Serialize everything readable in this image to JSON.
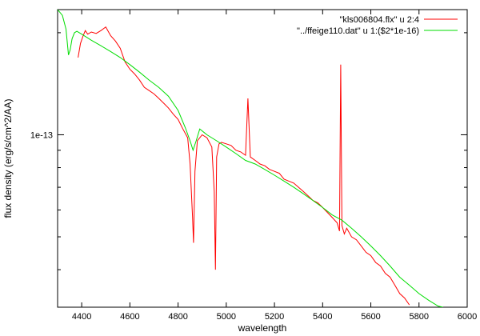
{
  "chart_data": {
    "type": "line",
    "xlabel": "wavelength",
    "ylabel": "flux density (erg/s/cm^2/AA)",
    "xlim": [
      4300,
      6000
    ],
    "x_ticks": [
      4400,
      4600,
      4800,
      5000,
      5200,
      5400,
      5600,
      5800,
      6000
    ],
    "y_scale": "log",
    "ylim": [
      3.1e-14,
      2.34e-13
    ],
    "y_ticks": [
      {
        "value": 1e-13,
        "label": "1e-13"
      }
    ],
    "grid": false,
    "legend_position": "top-right",
    "series": [
      {
        "name": "\"kls006804.flx\" u 2:4",
        "color": "#ff0000",
        "x": [
          4385,
          4395,
          4405,
          4415,
          4425,
          4440,
          4460,
          4480,
          4500,
          4520,
          4540,
          4560,
          4580,
          4600,
          4620,
          4640,
          4660,
          4680,
          4700,
          4720,
          4740,
          4760,
          4780,
          4800,
          4820,
          4840,
          4850,
          4860,
          4864,
          4870,
          4880,
          4900,
          4920,
          4940,
          4950,
          4955,
          4960,
          4970,
          4980,
          5000,
          5020,
          5040,
          5060,
          5080,
          5090,
          5100,
          5120,
          5140,
          5160,
          5180,
          5200,
          5220,
          5240,
          5260,
          5280,
          5300,
          5320,
          5340,
          5360,
          5380,
          5400,
          5420,
          5440,
          5460,
          5470,
          5475,
          5480,
          5490,
          5500,
          5520,
          5540,
          5560,
          5580,
          5600,
          5620,
          5640,
          5660,
          5680,
          5700,
          5720,
          5740,
          5760
        ],
        "y": [
          1.69e-13,
          1.86e-13,
          1.95e-13,
          2.03e-13,
          1.98e-13,
          2.01e-13,
          1.99e-13,
          2.03e-13,
          2.08e-13,
          1.96e-13,
          1.89e-13,
          1.8e-13,
          1.64e-13,
          1.56e-13,
          1.51e-13,
          1.45e-13,
          1.38e-13,
          1.35e-13,
          1.32e-13,
          1.28e-13,
          1.24e-13,
          1.2e-13,
          1.15e-13,
          1.11e-13,
          1.04e-13,
          9.8e-14,
          8.2e-14,
          5.7e-14,
          4.8e-14,
          7.8e-14,
          9.6e-14,
          1e-13,
          9.8e-14,
          9.2e-14,
          6.8e-14,
          4e-14,
          8.6e-14,
          9.4e-14,
          9.5e-14,
          9.4e-14,
          9.3e-14,
          9e-14,
          8.9e-14,
          8.7e-14,
          1.28e-13,
          8.6e-14,
          8.4e-14,
          8.2e-14,
          8.1e-14,
          7.9e-14,
          7.8e-14,
          7.7e-14,
          7.4e-14,
          7.3e-14,
          7.2e-14,
          7e-14,
          6.8e-14,
          6.6e-14,
          6.4e-14,
          6.3e-14,
          6.1e-14,
          5.9e-14,
          5.7e-14,
          5.5e-14,
          5.2e-14,
          1.61e-13,
          5.4e-14,
          5.1e-14,
          5.3e-14,
          5e-14,
          4.9e-14,
          4.7e-14,
          4.5e-14,
          4.4e-14,
          4.2e-14,
          4.1e-14,
          3.9e-14,
          3.8e-14,
          3.6e-14,
          3.4e-14,
          3.3e-14,
          3.15e-14
        ]
      },
      {
        "name": "\"../ffeige110.dat\" u 1:($2*1e-16)",
        "color": "#00dd00",
        "x": [
          4300,
          4320,
          4335,
          4345,
          4352,
          4360,
          4370,
          4380,
          4400,
          4440,
          4480,
          4520,
          4560,
          4600,
          4640,
          4680,
          4720,
          4760,
          4800,
          4830,
          4850,
          4862,
          4875,
          4890,
          4920,
          4960,
          5000,
          5040,
          5080,
          5120,
          5160,
          5200,
          5240,
          5280,
          5320,
          5360,
          5400,
          5440,
          5480,
          5520,
          5560,
          5600,
          5640,
          5680,
          5720,
          5760,
          5800,
          5840,
          5880,
          5900
        ],
        "y": [
          2.34e-13,
          2.25e-13,
          2.05e-13,
          1.72e-13,
          1.78e-13,
          1.92e-13,
          2e-13,
          2.02e-13,
          1.98e-13,
          1.9e-13,
          1.83e-13,
          1.76e-13,
          1.69e-13,
          1.61e-13,
          1.53e-13,
          1.45e-13,
          1.38e-13,
          1.3e-13,
          1.18e-13,
          1.05e-13,
          9.6e-14,
          9e-14,
          9.6e-14,
          1.04e-13,
          1e-13,
          9.6e-14,
          9.2e-14,
          8.8e-14,
          8.4e-14,
          8.2e-14,
          7.9e-14,
          7.6e-14,
          7.3e-14,
          7e-14,
          6.7e-14,
          6.4e-14,
          6.1e-14,
          5.8e-14,
          5.6e-14,
          5.3e-14,
          5e-14,
          4.7e-14,
          4.4e-14,
          4.1e-14,
          3.8e-14,
          3.6e-14,
          3.4e-14,
          3.25e-14,
          3.12e-14,
          3.1e-14
        ]
      }
    ]
  }
}
